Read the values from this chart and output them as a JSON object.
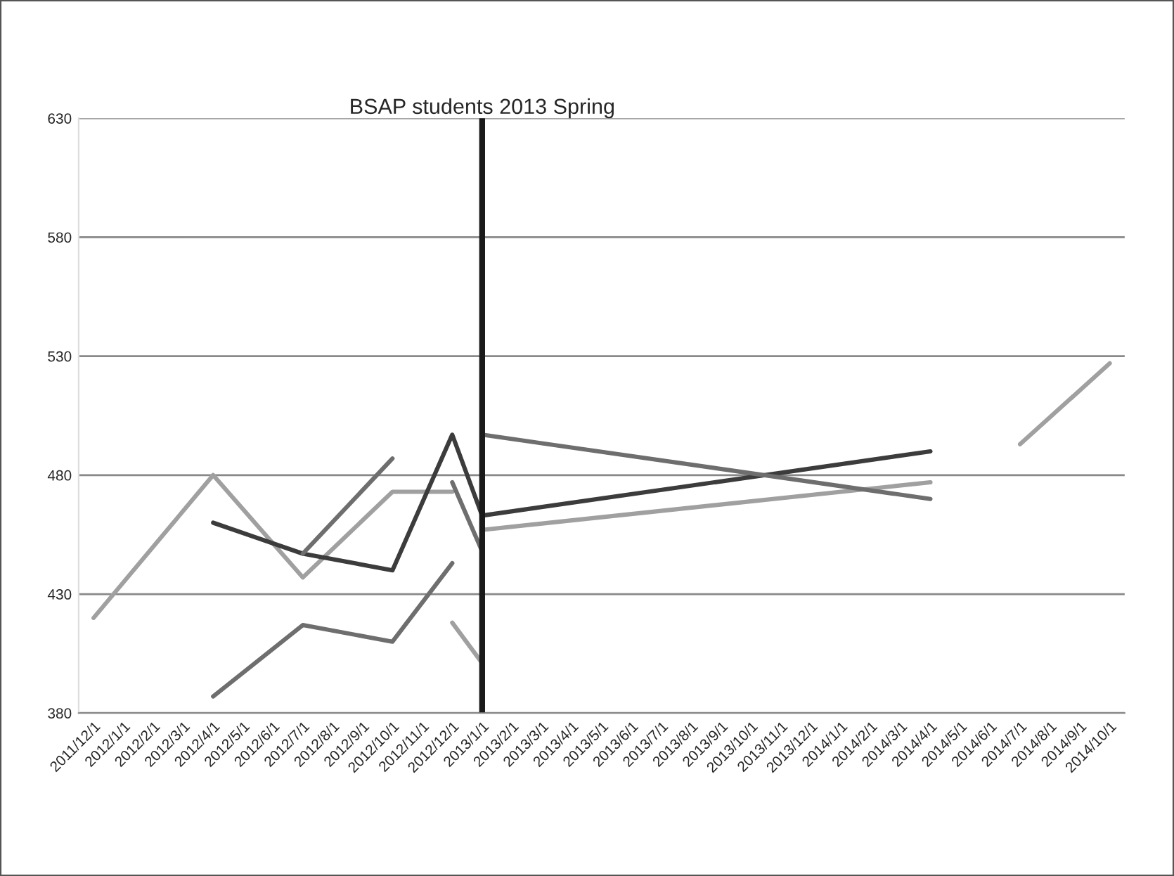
{
  "chart_data": {
    "type": "line",
    "categories": [
      "2011/12/1",
      "2012/1/1",
      "2012/2/1",
      "2012/3/1",
      "2012/4/1",
      "2012/5/1",
      "2012/6/1",
      "2012/7/1",
      "2012/8/1",
      "2012/9/1",
      "2012/10/1",
      "2012/11/1",
      "2012/12/1",
      "2013/1/1",
      "2013/2/1",
      "2013/3/1",
      "2013/4/1",
      "2013/5/1",
      "2013/6/1",
      "2013/7/1",
      "2013/8/1",
      "2013/9/1",
      "2013/10/1",
      "2013/11/1",
      "2013/12/1",
      "2014/1/1",
      "2014/2/1",
      "2014/3/1",
      "2014/4/1",
      "2014/5/1",
      "2014/6/1",
      "2014/7/1",
      "2014/8/1",
      "2014/9/1",
      "2014/10/1"
    ],
    "series": [
      {
        "color": "#a0a0a0",
        "x": [
          "2011/12/1",
          "2012/4/1",
          "2012/7/1",
          "2012/10/1",
          "2012/12/1"
        ],
        "values": [
          420,
          480,
          437,
          473,
          473
        ]
      },
      {
        "color": "#a0a0a0",
        "x": [
          "2012/12/1",
          "2013/1/1"
        ],
        "values": [
          418,
          401
        ]
      },
      {
        "color": "#a0a0a0",
        "x": [
          "2013/1/1",
          "2014/4/1"
        ],
        "values": [
          457,
          477
        ]
      },
      {
        "color": "#a0a0a0",
        "x": [
          "2014/7/1",
          "2014/10/1"
        ],
        "values": [
          493,
          527
        ]
      },
      {
        "color": "#3c3c3c",
        "x": [
          "2012/4/1",
          "2012/7/1",
          "2012/10/1",
          "2012/12/1",
          "2013/1/1",
          "2014/4/1"
        ],
        "values": [
          460,
          447,
          440,
          497,
          463,
          490
        ]
      },
      {
        "color": "#6e6e6e",
        "x": [
          "2012/4/1",
          "2012/7/1",
          "2012/10/1",
          "2012/12/1"
        ],
        "values": [
          387,
          417,
          410,
          443
        ]
      },
      {
        "color": "#6e6e6e",
        "x": [
          "2012/7/1",
          "2012/10/1"
        ],
        "values": [
          447,
          487
        ]
      },
      {
        "color": "#6e6e6e",
        "x": [
          "2012/12/1",
          "2013/1/1"
        ],
        "values": [
          477,
          448
        ]
      },
      {
        "color": "#6e6e6e",
        "x": [
          "2013/1/1",
          "2014/4/1"
        ],
        "values": [
          497,
          470
        ]
      }
    ],
    "ref_lines": [
      {
        "axis": "x",
        "value": "2013/1/1",
        "label": "BSAP students 2013 Spring",
        "color": "#1a1a1a"
      }
    ],
    "ylim": [
      380,
      630
    ],
    "yticks": [
      380,
      430,
      480,
      530,
      580,
      630
    ],
    "grid": "y",
    "legend": false,
    "marker": "none",
    "line_style": "solid"
  }
}
